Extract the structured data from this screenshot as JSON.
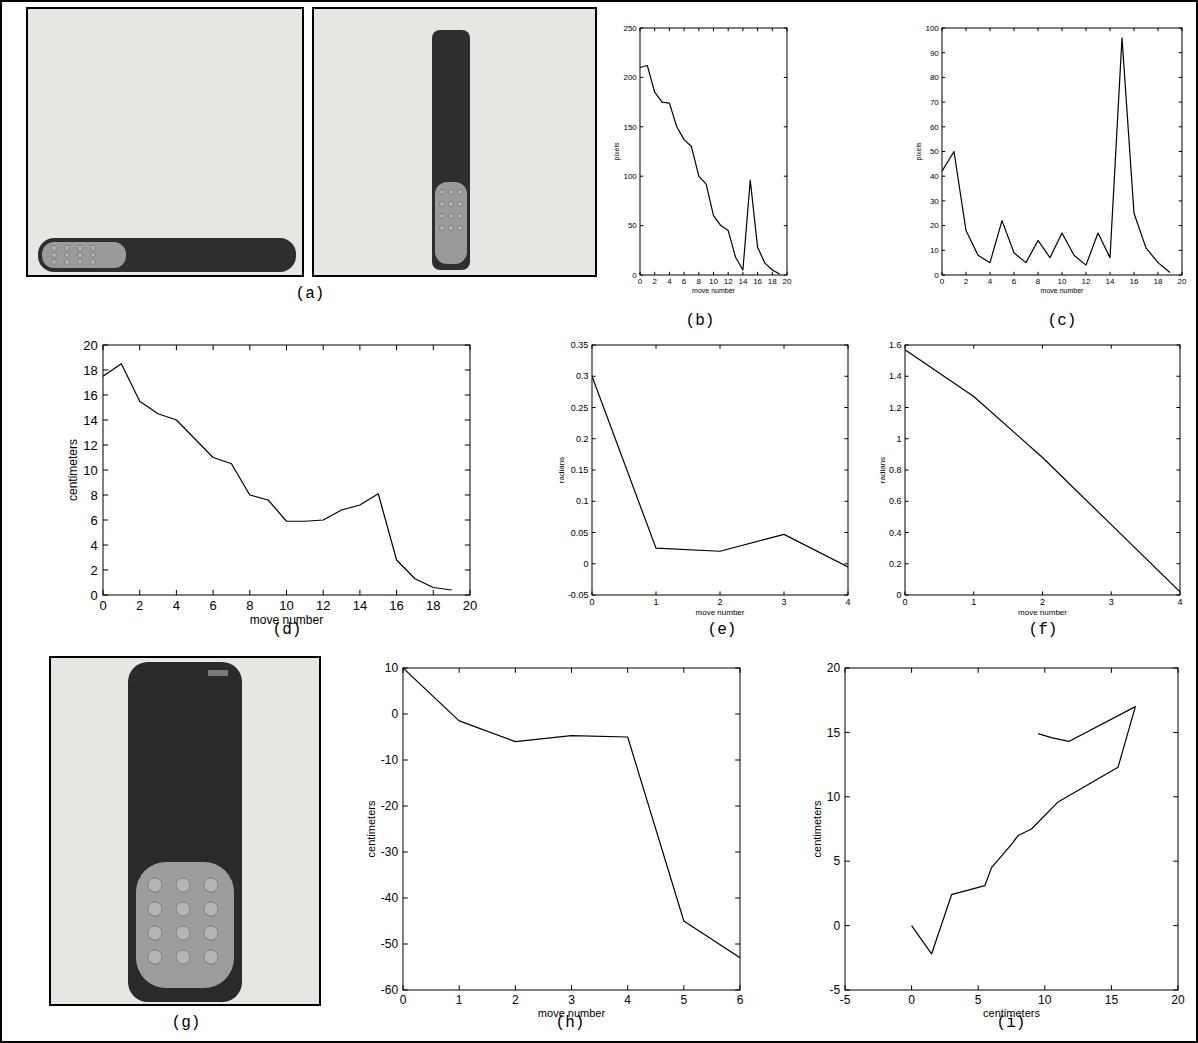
{
  "chart_data": [
    {
      "type": "line",
      "title": "(b)",
      "xlabel": "move number",
      "ylabel": "pixels",
      "color": "#000000",
      "x": [
        0,
        1,
        2,
        3,
        4,
        5,
        6,
        7,
        8,
        9,
        10,
        11,
        12,
        13,
        14,
        15,
        16,
        17,
        18,
        19
      ],
      "values": [
        210,
        212,
        185,
        175,
        174,
        150,
        137,
        130,
        100,
        92,
        60,
        50,
        45,
        18,
        5,
        96,
        28,
        12,
        5,
        1
      ],
      "xlim": [
        0,
        20
      ],
      "xticks": [
        0,
        2,
        4,
        6,
        8,
        10,
        12,
        14,
        16,
        18,
        20
      ],
      "ylim": [
        0,
        250
      ],
      "yticks": [
        0,
        50,
        100,
        150,
        200,
        250
      ]
    },
    {
      "type": "line",
      "title": "(c)",
      "xlabel": "move number",
      "ylabel": "pixels",
      "color": "#000000",
      "x": [
        0,
        1,
        2,
        3,
        4,
        5,
        6,
        7,
        8,
        9,
        10,
        11,
        12,
        13,
        14,
        15,
        16,
        17,
        18,
        19
      ],
      "values": [
        42,
        50,
        18,
        8,
        5,
        22,
        9,
        5,
        14,
        7,
        17,
        8,
        4,
        17,
        7,
        96,
        25,
        11,
        5,
        1
      ],
      "xlim": [
        0,
        20
      ],
      "xticks": [
        0,
        2,
        4,
        6,
        8,
        10,
        12,
        14,
        16,
        18,
        20
      ],
      "ylim": [
        0,
        100
      ],
      "yticks": [
        0,
        10,
        20,
        30,
        40,
        50,
        60,
        70,
        80,
        90,
        100
      ]
    },
    {
      "type": "line",
      "title": "(d)",
      "xlabel": "move number",
      "ylabel": "centimeters",
      "color": "#000000",
      "x": [
        0,
        1,
        2,
        3,
        4,
        5,
        6,
        7,
        8,
        9,
        10,
        11,
        12,
        13,
        14,
        15,
        16,
        17,
        18,
        19
      ],
      "values": [
        17.5,
        18.5,
        15.5,
        14.5,
        14,
        12.5,
        11,
        10.5,
        8,
        7.6,
        5.9,
        5.9,
        6,
        6.8,
        7.2,
        8.1,
        2.8,
        1.3,
        0.6,
        0.4
      ],
      "xlim": [
        0,
        20
      ],
      "xticks": [
        0,
        2,
        4,
        6,
        8,
        10,
        12,
        14,
        16,
        18,
        20
      ],
      "ylim": [
        0,
        20
      ],
      "yticks": [
        0,
        2,
        4,
        6,
        8,
        10,
        12,
        14,
        16,
        18,
        20
      ]
    },
    {
      "type": "line",
      "title": "(e)",
      "xlabel": "move number",
      "ylabel": "radians",
      "color": "#000000",
      "x": [
        0,
        1,
        2,
        3,
        4
      ],
      "values": [
        0.3,
        0.025,
        0.02,
        0.047,
        -0.005
      ],
      "xlim": [
        0,
        4
      ],
      "xticks": [
        0,
        1,
        2,
        3,
        4
      ],
      "ylim": [
        -0.05,
        0.35
      ],
      "yticks": [
        -0.05,
        0,
        0.05,
        0.1,
        0.15,
        0.2,
        0.25,
        0.3,
        0.35
      ]
    },
    {
      "type": "line",
      "title": "(f)",
      "xlabel": "move number",
      "ylabel": "radians",
      "color": "#000000",
      "x": [
        0,
        1,
        2,
        3,
        4
      ],
      "values": [
        1.57,
        1.27,
        0.88,
        0.45,
        0.02
      ],
      "xlim": [
        0,
        4
      ],
      "xticks": [
        0,
        1,
        2,
        3,
        4
      ],
      "ylim": [
        0,
        1.6
      ],
      "yticks": [
        0,
        0.2,
        0.4,
        0.6,
        0.8,
        1,
        1.2,
        1.4,
        1.6
      ]
    },
    {
      "type": "line",
      "title": "(h)",
      "xlabel": "move number",
      "ylabel": "centimeters",
      "color": "#000000",
      "x": [
        0,
        1,
        2,
        3,
        4,
        5,
        6
      ],
      "values": [
        10,
        -1.5,
        -6,
        -4.7,
        -5,
        -45,
        -53
      ],
      "xlim": [
        0,
        6
      ],
      "xticks": [
        0,
        1,
        2,
        3,
        4,
        5,
        6
      ],
      "ylim": [
        -60,
        10
      ],
      "yticks": [
        -60,
        -50,
        -40,
        -30,
        -20,
        -10,
        0,
        10
      ]
    },
    {
      "type": "line",
      "title": "(i)",
      "xlabel": "centimeters",
      "ylabel": "centimeters",
      "color": "#000000",
      "x": [
        0,
        1.5,
        3,
        5.5,
        6,
        7.5,
        8,
        9,
        11,
        13,
        15.5,
        16.8,
        11.8,
        10.5,
        9.5
      ],
      "values": [
        0,
        -2.2,
        2.4,
        3.1,
        4.5,
        6.3,
        7,
        7.5,
        9.6,
        10.8,
        12.3,
        17,
        14.3,
        14.6,
        14.9
      ],
      "xlim": [
        -5,
        20
      ],
      "xticks": [
        -5,
        0,
        5,
        10,
        15,
        20
      ],
      "ylim": [
        -5,
        20
      ],
      "yticks": [
        -5,
        0,
        5,
        10,
        15,
        20
      ]
    }
  ],
  "images": [
    {
      "caption": "(a)"
    },
    {
      "caption": "(g)"
    }
  ]
}
